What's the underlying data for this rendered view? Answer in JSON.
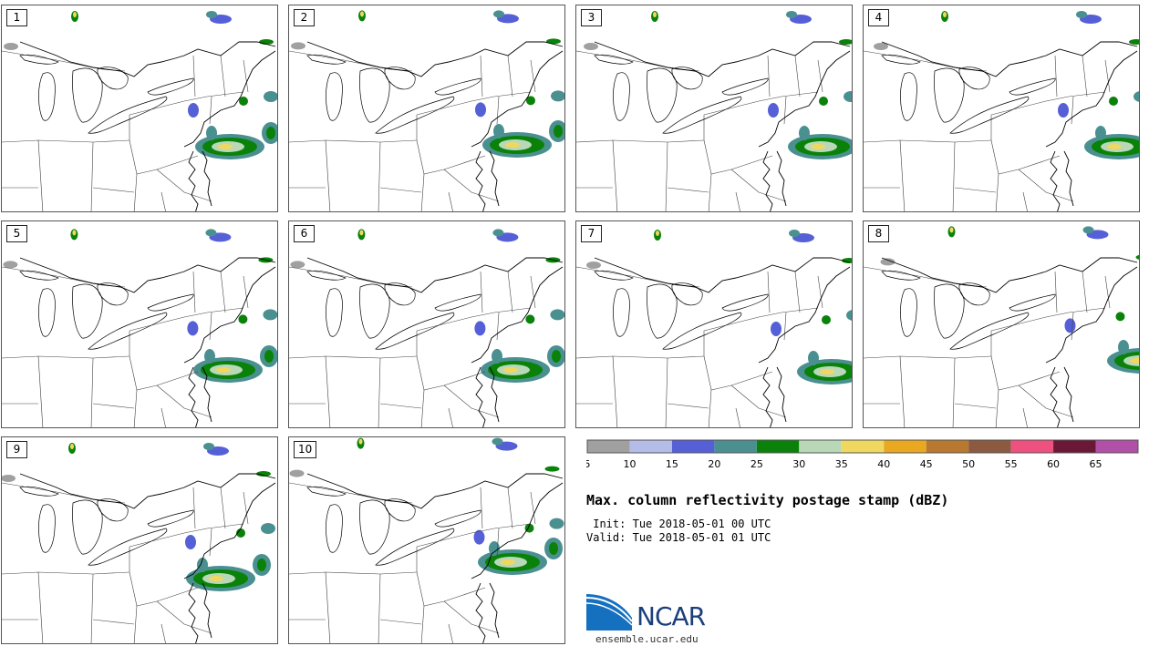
{
  "title": "Max. column reflectivity postage stamp (dBZ)",
  "init_label": " Init:",
  "init_value": "Tue 2018-05-01 00 UTC",
  "valid_label": "Valid:",
  "valid_value": "Tue 2018-05-01 01 UTC",
  "members": [
    "1",
    "2",
    "3",
    "4",
    "5",
    "6",
    "7",
    "8",
    "9",
    "10"
  ],
  "colorbar": {
    "ticks": [
      "5",
      "10",
      "15",
      "20",
      "25",
      "30",
      "35",
      "40",
      "45",
      "50",
      "55",
      "60",
      "65"
    ],
    "colors": [
      "#a0a0a0",
      "#b4bce8",
      "#5560d6",
      "#4b9090",
      "#0a820a",
      "#b8d8b8",
      "#f0d860",
      "#eaa820",
      "#b87830",
      "#8c5a40",
      "#ee5080",
      "#6a1838",
      "#b050a8"
    ]
  },
  "logo": {
    "name": "ncar-logo",
    "wordmark": "NCAR",
    "site": "ensemble.ucar.edu",
    "colors": {
      "blue": "#1570c0",
      "navy": "#1b3f7a"
    }
  },
  "map_colors": {
    "border": "#000000",
    "state_line": "#444444"
  }
}
